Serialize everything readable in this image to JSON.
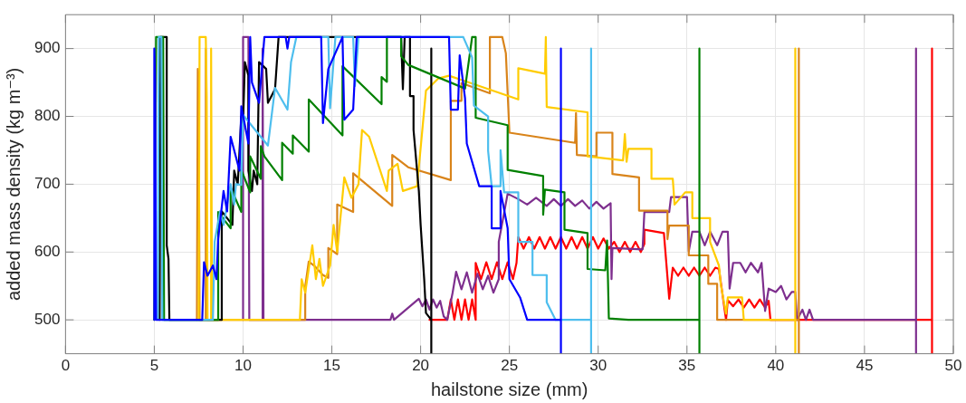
{
  "chart_data": {
    "type": "line",
    "xlabel": "hailstone size (mm)",
    "ylabel": "added mass density (kg m⁻³)",
    "xlim": [
      0,
      50
    ],
    "xticks": [
      0,
      5,
      10,
      15,
      20,
      25,
      30,
      35,
      40,
      45,
      50
    ],
    "ylim": [
      450,
      950
    ],
    "yticks": [
      500,
      600,
      700,
      800,
      900
    ],
    "grid": true,
    "marker": "none",
    "line_style": "solid",
    "series": [
      {
        "color": "#0000ff",
        "x": [
          5,
          5,
          5.05,
          5.1,
          7.7,
          7.8,
          8.0,
          8.3,
          8.5,
          8.6,
          8.9,
          9.1,
          9.3,
          9.8,
          9.9,
          10.3,
          10.4,
          10.5,
          10.9,
          11.2,
          12.4,
          12.5,
          12.6,
          14.4,
          14.5,
          14.8,
          15.6,
          15.7,
          16.2,
          16.4,
          21.6,
          21.7,
          22.1,
          22.2,
          22.5,
          22.6,
          23.3,
          24.0,
          24.0,
          24.5,
          24.5,
          24.9,
          25.0,
          25.6,
          26.0,
          27.9,
          27.9,
          27.9
        ],
        "values": [
          500,
          900,
          850,
          500,
          500,
          585,
          565,
          580,
          560,
          620,
          690,
          660,
          770,
          720,
          815,
          760,
          917,
          850,
          820,
          917,
          917,
          900,
          917,
          917,
          790,
          870,
          917,
          795,
          810,
          917,
          917,
          810,
          810,
          890,
          827,
          760,
          697,
          697,
          635,
          635,
          690,
          635,
          560,
          533,
          500,
          500,
          900,
          450
        ]
      },
      {
        "color": "#4dbeee",
        "x": [
          5.2,
          5.25,
          5.4,
          5.45,
          8.3,
          8.4,
          8.7,
          8.9,
          9.3,
          9.5,
          9.6,
          9.9,
          10.0,
          11.4,
          11.8,
          12.5,
          12.7,
          13.0,
          14.8,
          14.9,
          15.2,
          16.2,
          16.3,
          16.5,
          22.4,
          22.9,
          23.0,
          23.8,
          23.8,
          24.0,
          24.5,
          24.5,
          24.7,
          25.5,
          25.5,
          26.3,
          26.3,
          27.1,
          27.1,
          27.6,
          29.6,
          29.6,
          29.6
        ],
        "values": [
          500,
          917,
          917,
          500,
          500,
          615,
          660,
          640,
          700,
          670,
          700,
          699,
          802,
          757,
          842,
          810,
          880,
          917,
          917,
          812,
          917,
          917,
          845,
          917,
          917,
          887,
          816,
          800,
          749,
          697,
          697,
          750,
          688,
          688,
          615,
          615,
          566,
          566,
          526,
          500,
          500,
          900,
          450
        ]
      },
      {
        "color": "#008000",
        "x": [
          5.0,
          5.1,
          5.5,
          5.55,
          8.6,
          8.6,
          9.3,
          9.3,
          9.9,
          9.9,
          10.4,
          10.4,
          11.0,
          11.0,
          11.2,
          12.2,
          12.2,
          12.8,
          12.8,
          13.7,
          13.7,
          15.6,
          15.6,
          17.8,
          17.8,
          18.1,
          18.1,
          18.9,
          18.9,
          19.3,
          22.5,
          22.9,
          23.1,
          23.1,
          24.9,
          24.9,
          26.9,
          26.9,
          27.0,
          28.1,
          28.1,
          29.4,
          29.4,
          30.4,
          30.5,
          30.6,
          31.7,
          35.7,
          35.7,
          35.7
        ],
        "values": [
          500,
          917,
          917,
          500,
          500,
          659,
          635,
          695,
          659,
          721,
          688,
          741,
          708,
          756,
          741,
          706,
          761,
          745,
          772,
          748,
          825,
          772,
          874,
          818,
          858,
          851,
          917,
          917,
          889,
          876,
          841,
          917,
          917,
          798,
          787,
          721,
          712,
          655,
          692,
          688,
          633,
          628,
          575,
          573,
          617,
          502,
          500,
          500,
          900,
          450
        ]
      },
      {
        "color": "#000000",
        "x": [
          5.3,
          5.35,
          5.7,
          5.7,
          5.8,
          5.85,
          8.8,
          8.8,
          9.4,
          9.5,
          9.7,
          9.9,
          10.0,
          10.1,
          10.3,
          10.3,
          10.5,
          10.6,
          10.8,
          10.9,
          11.3,
          11.4,
          11.8,
          12.0,
          18.9,
          19.0,
          19.1,
          19.4,
          19.4,
          19.6,
          19.6,
          19.9,
          20.0,
          20.2,
          20.3,
          20.6,
          20.6,
          20.6
        ],
        "values": [
          500,
          917,
          917,
          610,
          590,
          500,
          500,
          660,
          640,
          720,
          700,
          800,
          790,
          880,
          860,
          720,
          690,
          720,
          700,
          880,
          870,
          820,
          840,
          917,
          917,
          840,
          917,
          917,
          830,
          830,
          780,
          690,
          640,
          560,
          510,
          500,
          900,
          450
        ]
      },
      {
        "color": "#ffcc00",
        "x": [
          7.5,
          7.55,
          7.9,
          7.95,
          8.0,
          8.2,
          8.2,
          8.25,
          13.2,
          13.3,
          13.5,
          13.9,
          14.1,
          14.3,
          14.5,
          14.9,
          15.1,
          15.3,
          15.7,
          16.1,
          16.5,
          16.7,
          17.1,
          18.1,
          18.2,
          18.7,
          19.0,
          19.8,
          20.3,
          21.0,
          21.6,
          25.5,
          25.5,
          27.0,
          27.05,
          27.1,
          28.8,
          29.4,
          29.4,
          31.4,
          31.5,
          31.6,
          31.7,
          33.0,
          33.0,
          34.2,
          34.3,
          34.9,
          35.3,
          35.3,
          36.3,
          36.3,
          36.8,
          36.9,
          37.2,
          37.3,
          38.1,
          38.2,
          41.1,
          41.1,
          41.1
        ],
        "values": [
          500,
          917,
          917,
          830,
          500,
          500,
          900,
          500,
          500,
          560,
          540,
          610,
          560,
          590,
          550,
          580,
          640,
          600,
          710,
          680,
          700,
          780,
          770,
          690,
          720,
          730,
          690,
          697,
          838,
          856,
          860,
          825,
          871,
          863,
          917,
          814,
          808,
          806,
          741,
          735,
          774,
          733,
          752,
          752,
          708,
          708,
          670,
          688,
          688,
          650,
          650,
          615,
          580,
          553,
          509,
          533,
          533,
          500,
          500,
          900,
          450
        ]
      },
      {
        "color": "#d9841a",
        "x": [
          7.4,
          7.45,
          7.5,
          7.55,
          7.9,
          7.9,
          7.95,
          13.5,
          13.5,
          13.7,
          14.0,
          14.5,
          14.8,
          14.8,
          15.3,
          15.3,
          16.2,
          16.2,
          18.4,
          18.4,
          19.3,
          21.7,
          21.7,
          22.3,
          22.3,
          23.9,
          23.9,
          24.6,
          24.8,
          25.0,
          28.7,
          28.75,
          28.8,
          29.9,
          29.9,
          30.8,
          30.8,
          32.3,
          32.3,
          33.9,
          33.9,
          34.0,
          35.1,
          35.1,
          36.2,
          36.2,
          36.7,
          36.7,
          41.3,
          41.3,
          41.3
        ],
        "values": [
          500,
          870,
          860,
          500,
          500,
          900,
          500,
          500,
          549,
          586,
          580,
          566,
          562,
          606,
          597,
          670,
          659,
          716,
          668,
          743,
          725,
          706,
          823,
          823,
          849,
          834,
          917,
          917,
          893,
          776,
          761,
          805,
          743,
          741,
          776,
          776,
          715,
          710,
          661,
          661,
          619,
          639,
          639,
          595,
          595,
          553,
          553,
          500,
          500,
          900,
          450
        ]
      },
      {
        "color": "#7e2f8e",
        "x": [
          10.0,
          10.0,
          10.3,
          10.35,
          11.1,
          11.1,
          11.15,
          18.3,
          18.4,
          18.5,
          19.9,
          20.1,
          20.3,
          20.5,
          20.7,
          20.9,
          21.1,
          21.3,
          21.5,
          21.8,
          22.0,
          22.3,
          22.6,
          22.9,
          23.2,
          23.5,
          23.8,
          24.1,
          24.4,
          24.4,
          24.9,
          25.5,
          26.0,
          26.5,
          27.1,
          27.5,
          27.9,
          28.3,
          28.7,
          29.1,
          29.5,
          29.9,
          30.3,
          30.7,
          30.75,
          30.8,
          32.5,
          32.6,
          34.0,
          34.1,
          34.3,
          35.0,
          35.1,
          35.3,
          35.7,
          36.0,
          36.3,
          36.7,
          37.0,
          37.3,
          37.4,
          37.6,
          38.0,
          38.3,
          38.6,
          39.0,
          39.2,
          39.4,
          39.6,
          40.0,
          40.3,
          40.6,
          40.9,
          41.1,
          41.2,
          41.5,
          41.7,
          41.9,
          42.1,
          42.3,
          42.5,
          47.9,
          47.9,
          47.9
        ],
        "values": [
          500,
          917,
          917,
          500,
          500,
          900,
          500,
          500,
          509,
          500,
          531,
          520,
          530,
          515,
          530,
          518,
          528,
          505,
          500,
          540,
          571,
          545,
          570,
          540,
          568,
          545,
          565,
          540,
          560,
          615,
          686,
          678,
          670,
          680,
          668,
          678,
          668,
          678,
          668,
          676,
          664,
          674,
          664,
          672,
          560,
          606,
          604,
          659,
          659,
          681,
          681,
          681,
          601,
          630,
          630,
          610,
          630,
          610,
          630,
          630,
          546,
          584,
          584,
          570,
          584,
          570,
          584,
          513,
          546,
          541,
          550,
          530,
          541,
          541,
          500,
          515,
          500,
          515,
          500,
          500,
          500,
          500,
          900,
          450
        ]
      },
      {
        "color": "#ff0000",
        "x": [
          20.5,
          21.5,
          21.7,
          21.9,
          22.1,
          22.3,
          22.5,
          22.7,
          22.9,
          23.1,
          23.1,
          23.4,
          23.7,
          24.0,
          24.3,
          24.6,
          24.9,
          25.2,
          25.4,
          25.5,
          25.8,
          26.1,
          26.4,
          26.7,
          27.0,
          27.3,
          27.6,
          27.9,
          28.2,
          28.5,
          28.8,
          29.1,
          29.4,
          29.7,
          30.0,
          30.3,
          30.6,
          30.9,
          31.2,
          31.5,
          31.8,
          32.1,
          32.4,
          32.6,
          32.6,
          33.7,
          34.0,
          34.2,
          34.5,
          34.8,
          35.1,
          35.4,
          35.7,
          36.0,
          36.3,
          36.6,
          36.8,
          37.2,
          37.3,
          37.6,
          37.9,
          38.2,
          38.5,
          38.8,
          39.1,
          39.4,
          39.6,
          39.7,
          48.8,
          48.8,
          48.8
        ],
        "values": [
          500,
          500,
          530,
          500,
          530,
          500,
          530,
          500,
          530,
          500,
          584,
          560,
          585,
          560,
          585,
          560,
          585,
          560,
          584,
          622,
          605,
          622,
          605,
          622,
          605,
          622,
          605,
          622,
          605,
          622,
          605,
          622,
          605,
          622,
          605,
          620,
          605,
          615,
          600,
          615,
          600,
          615,
          600,
          612,
          633,
          628,
          531,
          577,
          565,
          577,
          565,
          577,
          565,
          577,
          565,
          577,
          575,
          500,
          529,
          520,
          530,
          518,
          530,
          518,
          530,
          518,
          528,
          500,
          500,
          900,
          450
        ]
      }
    ]
  }
}
